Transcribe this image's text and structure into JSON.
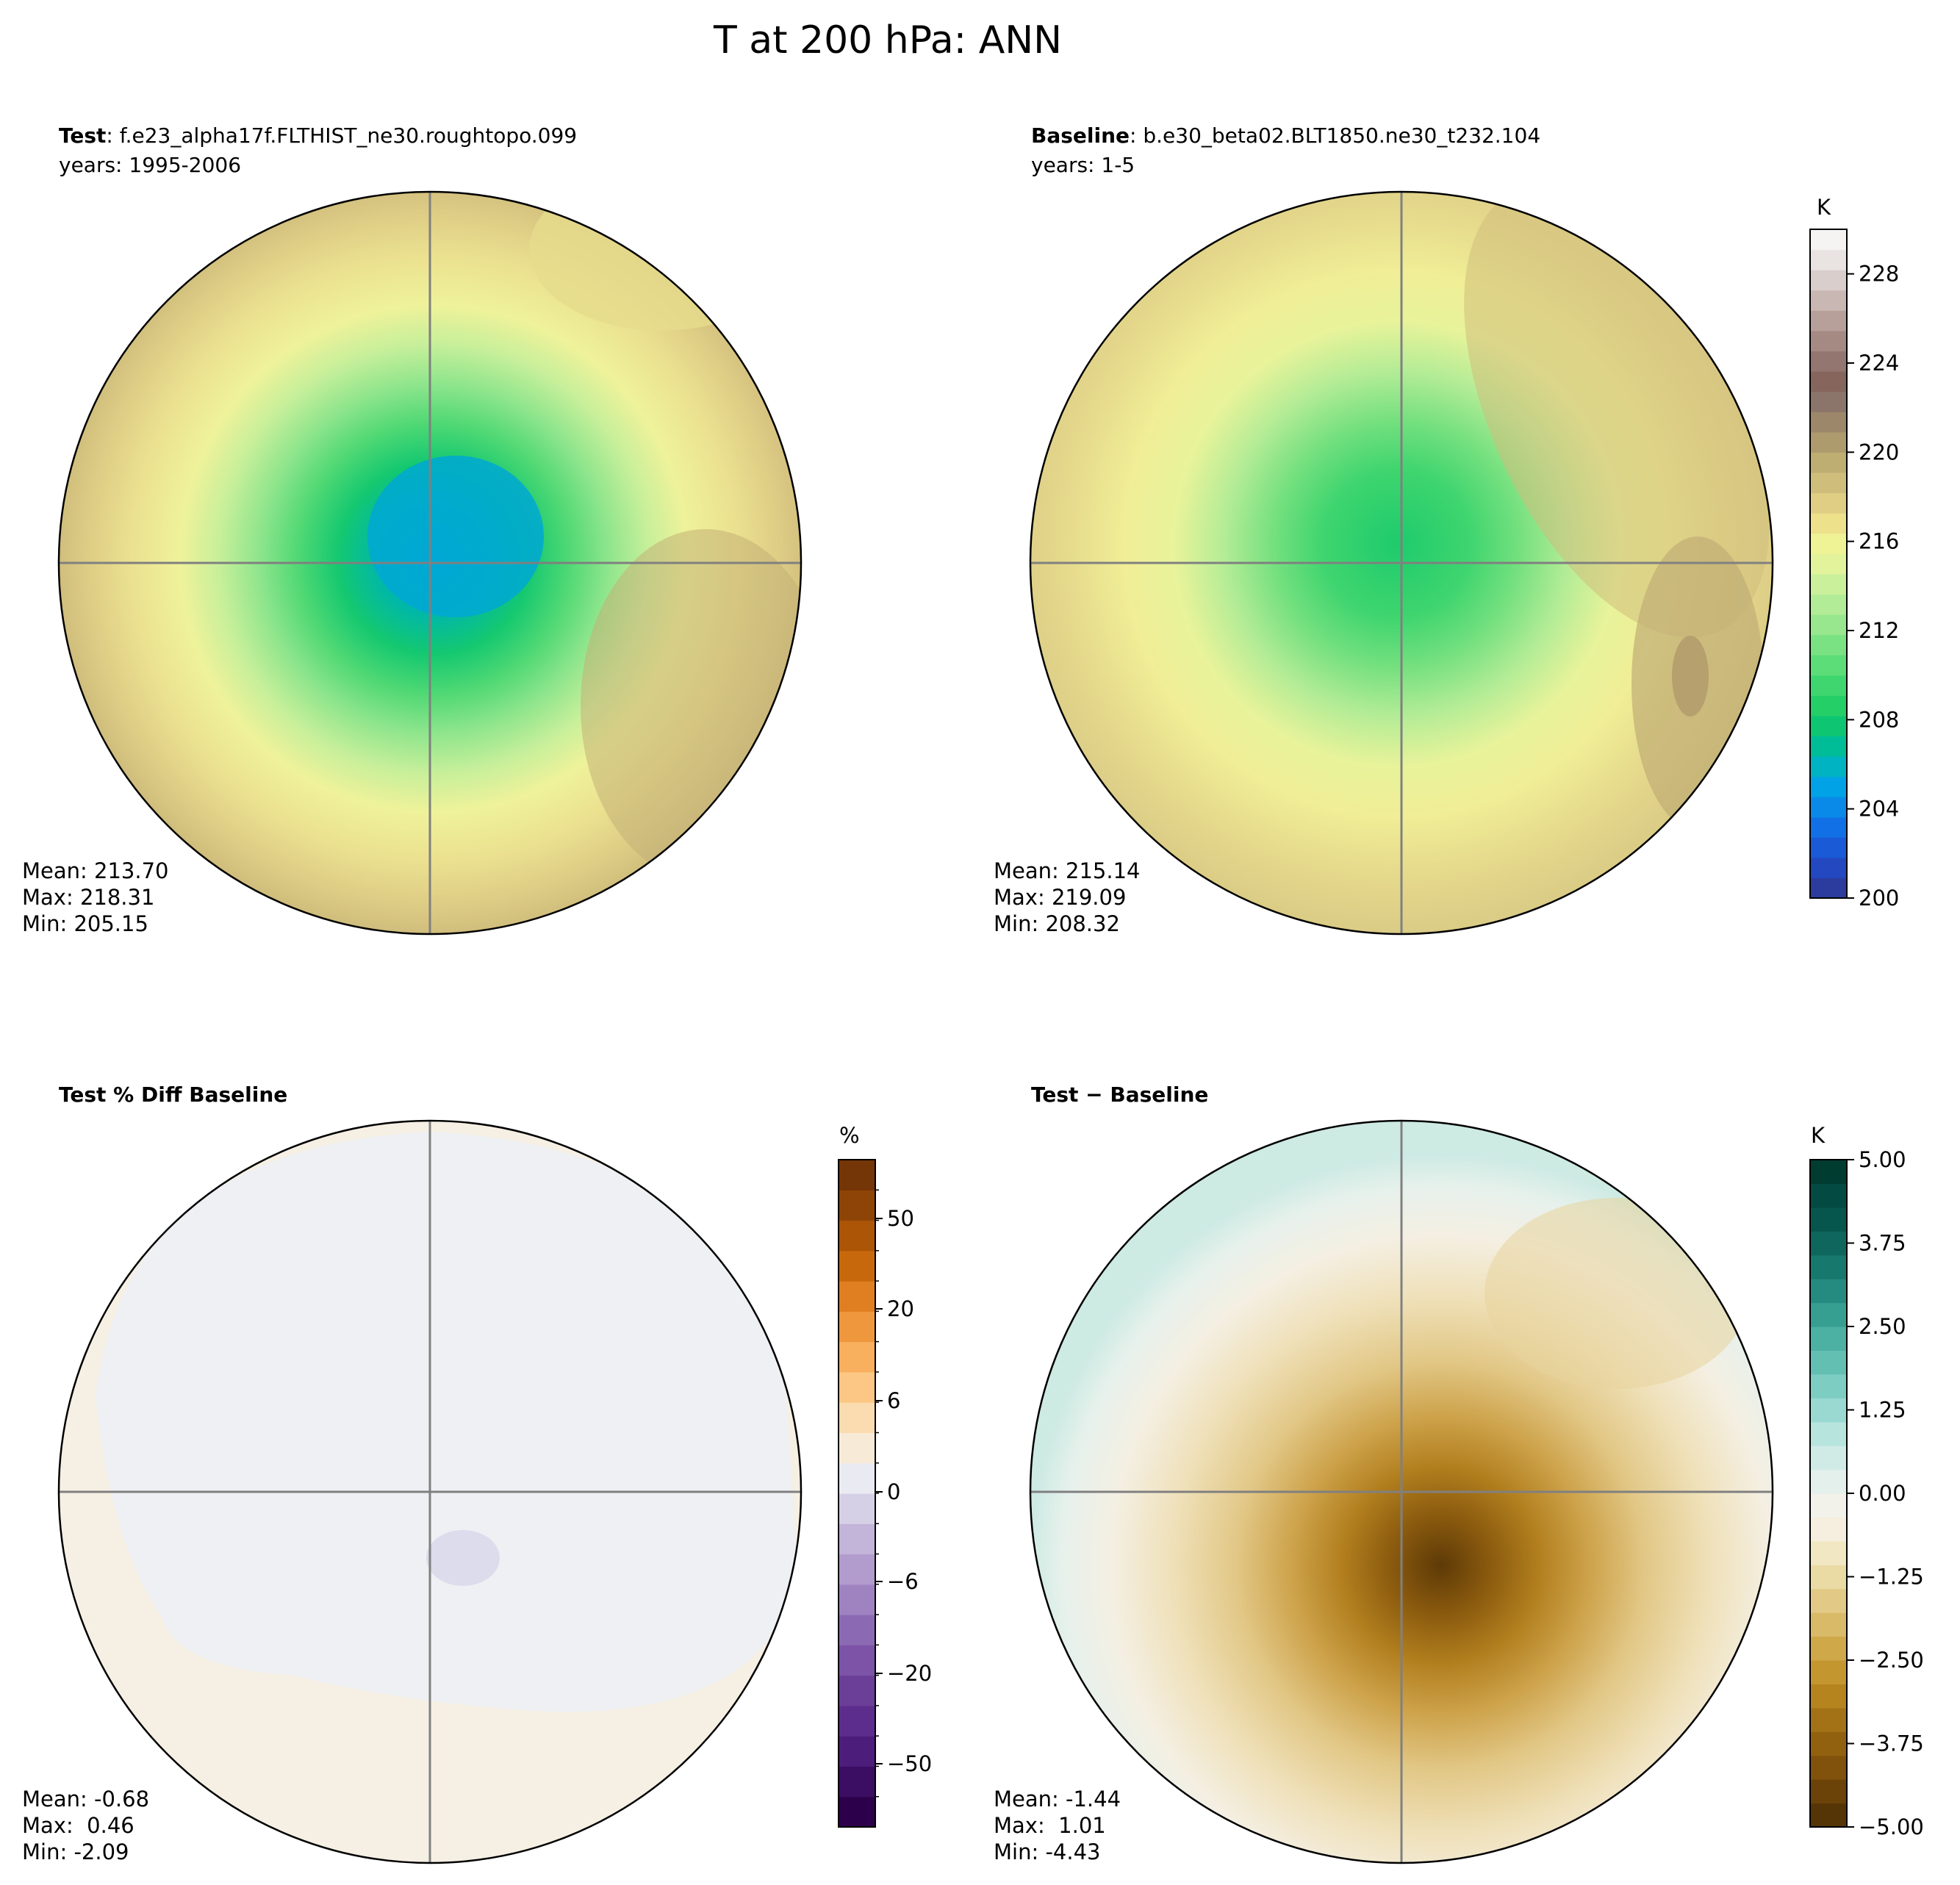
{
  "figure": {
    "title": "T at 200 hPa: ANN"
  },
  "panels": [
    {
      "id": "test",
      "title_bold": "Test",
      "title_rest": ": f.e23_alpha17f.FLTHIST_ne30.roughtopo.099",
      "subtitle": "years: 1995-2006",
      "stats": {
        "mean": "Mean: 213.70",
        "max": "Max: 218.31",
        "min": "Min: 205.15"
      }
    },
    {
      "id": "baseline",
      "title_bold": "Baseline",
      "title_rest": ": b.e30_beta02.BLT1850.ne30_t232.104",
      "subtitle": "years: 1-5",
      "stats": {
        "mean": "Mean: 215.14",
        "max": "Max: 219.09",
        "min": "Min: 208.32"
      }
    },
    {
      "id": "pctdiff",
      "title_bold": "Test % Diff Baseline",
      "title_rest": "",
      "subtitle": "",
      "stats": {
        "mean": "Mean: -0.68",
        "max": "Max:  0.46",
        "min": "Min: -2.09"
      }
    },
    {
      "id": "diff",
      "title_bold": "Test − Baseline",
      "title_rest": "",
      "subtitle": "",
      "stats": {
        "mean": "Mean: -1.44",
        "max": "Max:  1.01",
        "min": "Min: -4.43"
      }
    }
  ],
  "colorbars": [
    {
      "id": "cb-temp",
      "unit": "K",
      "ticks": [
        "200",
        "204",
        "208",
        "212",
        "216",
        "220",
        "224",
        "228"
      ],
      "colors": [
        "#2b3c9e",
        "#2348c0",
        "#1a5ad6",
        "#1270e6",
        "#0a8ae8",
        "#02a3e6",
        "#00b3c2",
        "#00bd98",
        "#0ec672",
        "#24cf68",
        "#3fd66f",
        "#5ddd78",
        "#7ae283",
        "#98e78e",
        "#b3ec96",
        "#cbf09b",
        "#e2f39b",
        "#eff295",
        "#ede18c",
        "#dfce84",
        "#cfbd7c",
        "#bfae72",
        "#ad9a6d",
        "#9c876a",
        "#8b7469",
        "#86655d",
        "#93766f",
        "#a58a84",
        "#b8a09a",
        "#c8b7b3",
        "#d9cecc",
        "#e9e3e2",
        "#f6f3f3"
      ]
    },
    {
      "id": "cb-pct",
      "unit": "%",
      "ticks": [
        "−50",
        "−20",
        "−6",
        "0",
        "6",
        "20",
        "50"
      ],
      "colors": [
        "#2d004b",
        "#3c0e63",
        "#4c1d7a",
        "#5c2d8d",
        "#6b3e98",
        "#7c53a6",
        "#8c6ab3",
        "#9f82c0",
        "#b29bcd",
        "#c3b4d9",
        "#d6d0e7",
        "#eaebf2",
        "#f7ebd8",
        "#fbdcb0",
        "#fcc784",
        "#f9b05e",
        "#ee973d",
        "#df7f22",
        "#c8680d",
        "#ac5507",
        "#8f4407",
        "#743507"
      ]
    },
    {
      "id": "cb-diff",
      "unit": "K",
      "ticks": [
        "−5.00",
        "−3.75",
        "−2.50",
        "−1.25",
        "0.00",
        "1.25",
        "2.50",
        "3.75",
        "5.00"
      ],
      "colors": [
        "#553506",
        "#6b4208",
        "#80520c",
        "#92610f",
        "#a37216",
        "#b5841f",
        "#c3962f",
        "#cfa84a",
        "#d9ba68",
        "#e2ca86",
        "#eadba5",
        "#f1e7c2",
        "#f6eede",
        "#f3f2ea",
        "#e4f0ec",
        "#d0ebe6",
        "#b7e4dd",
        "#9ad9d1",
        "#7ecdc3",
        "#64bfb3",
        "#4cb0a3",
        "#379e92",
        "#258b80",
        "#17786e",
        "#0e665d",
        "#07564e",
        "#034a43",
        "#003c30"
      ]
    }
  ],
  "chart_data": [
    {
      "type": "heatmap",
      "title": "Test : f.e23_alpha17f.FLTHIST_ne30.roughtopo.099",
      "subtitle": "years: 1995-2006",
      "variable": "T",
      "level": "200 hPa",
      "season": "ANN",
      "projection": "south polar stereographic",
      "units": "K",
      "colorbar": {
        "range": [
          200,
          230
        ],
        "ticks": [
          200,
          204,
          208,
          212,
          216,
          220,
          224,
          228
        ]
      },
      "stats": {
        "mean": 213.7,
        "max": 218.31,
        "min": 205.15
      }
    },
    {
      "type": "heatmap",
      "title": "Baseline : b.e30_beta02.BLT1850.ne30_t232.104",
      "subtitle": "years: 1-5",
      "variable": "T",
      "level": "200 hPa",
      "season": "ANN",
      "projection": "south polar stereographic",
      "units": "K",
      "colorbar": {
        "range": [
          200,
          230
        ],
        "ticks": [
          200,
          204,
          208,
          212,
          216,
          220,
          224,
          228
        ]
      },
      "stats": {
        "mean": 215.14,
        "max": 219.09,
        "min": 208.32
      }
    },
    {
      "type": "heatmap",
      "title": "Test % Diff Baseline",
      "units": "%",
      "projection": "south polar stereographic",
      "colorbar": {
        "ticks": [
          -50,
          -20,
          -6,
          0,
          6,
          20,
          50
        ]
      },
      "stats": {
        "mean": -0.68,
        "max": 0.46,
        "min": -2.09
      }
    },
    {
      "type": "heatmap",
      "title": "Test − Baseline",
      "units": "K",
      "projection": "south polar stereographic",
      "colorbar": {
        "range": [
          -5,
          5
        ],
        "ticks": [
          -5.0,
          -3.75,
          -2.5,
          -1.25,
          0.0,
          1.25,
          2.5,
          3.75,
          5.0
        ]
      },
      "stats": {
        "mean": -1.44,
        "max": 1.01,
        "min": -4.43
      }
    }
  ]
}
